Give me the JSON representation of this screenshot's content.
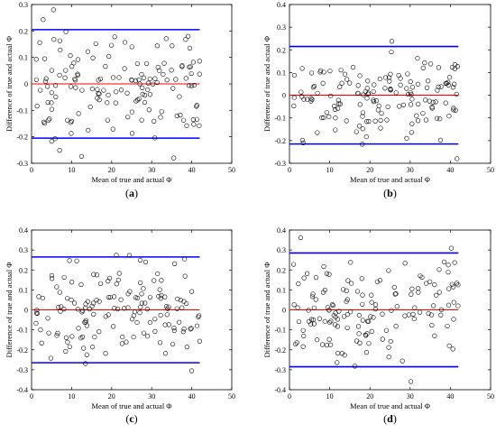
{
  "chart_data": [
    {
      "type": "scatter",
      "panel_label": {
        "open": "(",
        "letter": "a",
        "close": ")"
      },
      "xlabel": "Mean of true and actual Φ",
      "ylabel": "Difference of true and actual Φ",
      "xlim": [
        0,
        50
      ],
      "ylim": [
        -0.3,
        0.3
      ],
      "xticks": [
        "0",
        "10",
        "20",
        "30",
        "40",
        "50"
      ],
      "yticks": [
        "-0.3",
        "-0.2",
        "-0.1",
        "0",
        "0.1",
        "0.2",
        "0.3"
      ],
      "grid": false,
      "marker": "open-circle",
      "mean_line": {
        "y": 0,
        "color": "#ff0000"
      },
      "limit_lines": {
        "upper": 0.205,
        "lower": -0.205,
        "color": "#0000ff"
      },
      "x_range": [
        0,
        42
      ],
      "spread": 0.1,
      "points": []
    },
    {
      "type": "scatter",
      "panel_label": {
        "open": "(",
        "letter": "b",
        "close": ")"
      },
      "xlabel": "Mean of true and actual Φ",
      "ylabel": "Difference of true and actual Φ",
      "xlim": [
        0,
        50
      ],
      "ylim": [
        -0.3,
        0.4
      ],
      "xticks": [
        "0",
        "10",
        "20",
        "30",
        "40",
        "50"
      ],
      "yticks": [
        "-0.3",
        "-0.2",
        "-0.1",
        "0",
        "0.1",
        "0.2",
        "0.3",
        "0.4"
      ],
      "grid": false,
      "marker": "open-circle",
      "mean_line": {
        "y": 0,
        "color": "#ff0000"
      },
      "limit_lines": {
        "upper": 0.215,
        "lower": -0.215,
        "color": "#0000ff"
      },
      "x_range": [
        0,
        42
      ],
      "spread": 0.1,
      "points": []
    },
    {
      "type": "scatter",
      "panel_label": {
        "open": "(",
        "letter": "c",
        "close": ")"
      },
      "xlabel": "Mean of true and actual Φ",
      "ylabel": "Difference of true and actual Φ",
      "xlim": [
        0,
        50
      ],
      "ylim": [
        -0.4,
        0.4
      ],
      "xticks": [
        "0",
        "10",
        "20",
        "30",
        "40",
        "50"
      ],
      "yticks": [
        "-0.4",
        "-0.3",
        "-0.2",
        "-0.1",
        "0",
        "0.1",
        "0.2",
        "0.3",
        "0.4"
      ],
      "grid": false,
      "marker": "open-circle",
      "mean_line": {
        "y": 0,
        "color": "#ff0000"
      },
      "limit_lines": {
        "upper": 0.265,
        "lower": -0.265,
        "color": "#0000ff"
      },
      "x_range": [
        0,
        42
      ],
      "spread": 0.13,
      "points": []
    },
    {
      "type": "scatter",
      "panel_label": {
        "open": "(",
        "letter": "d",
        "close": ")"
      },
      "xlabel": "Mean of true and actual Φ",
      "ylabel": "Difference of true and actual Φ",
      "xlim": [
        0,
        50
      ],
      "ylim": [
        -0.4,
        0.4
      ],
      "xticks": [
        "0",
        "10",
        "20",
        "30",
        "40",
        "50"
      ],
      "yticks": [
        "-0.4",
        "-0.3",
        "-0.2",
        "-0.1",
        "0",
        "0.1",
        "0.2",
        "0.3",
        "0.4"
      ],
      "grid": false,
      "marker": "open-circle",
      "mean_line": {
        "y": 0,
        "color": "#ff0000"
      },
      "limit_lines": {
        "upper": 0.285,
        "lower": -0.285,
        "color": "#0000ff"
      },
      "x_range": [
        0,
        42
      ],
      "spread": 0.14,
      "points": []
    }
  ]
}
